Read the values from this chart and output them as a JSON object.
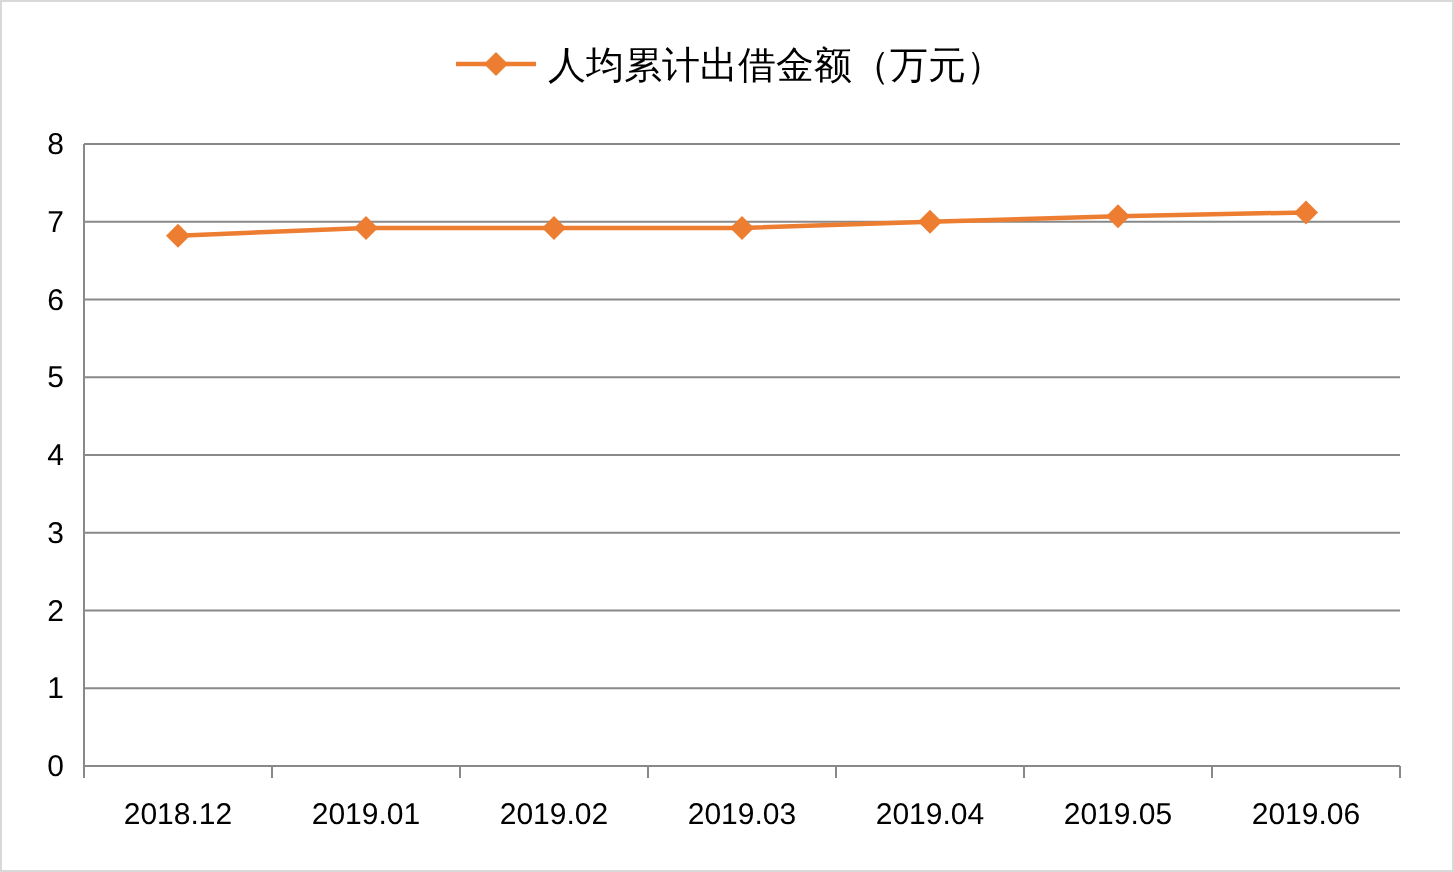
{
  "chart_data": {
    "type": "line",
    "categories": [
      "2018.12",
      "2019.01",
      "2019.02",
      "2019.03",
      "2019.04",
      "2019.05",
      "2019.06"
    ],
    "series": [
      {
        "name": "人均累计出借金额（万元）",
        "color": "#ed7d31",
        "values": [
          6.82,
          6.92,
          6.92,
          6.92,
          7.0,
          7.07,
          7.12
        ]
      }
    ],
    "ylim": [
      0,
      8
    ],
    "yticks": [
      0,
      1,
      2,
      3,
      4,
      5,
      6,
      7,
      8
    ],
    "grid": "y",
    "legend": "top",
    "marker": "diamond",
    "line_style": "solid"
  }
}
